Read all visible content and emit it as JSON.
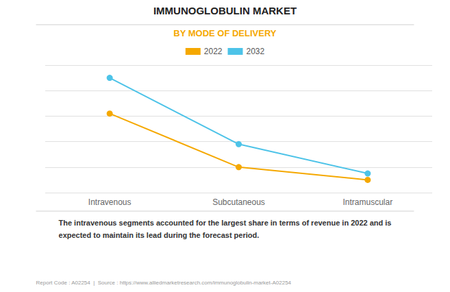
{
  "chart_data": {
    "type": "line",
    "title": "IMMUNOGLOBULIN MARKET",
    "subtitle": "BY MODE OF DELIVERY",
    "categories": [
      "Intravenous",
      "Subcutaneous",
      "Intramuscular"
    ],
    "series": [
      {
        "name": "2022",
        "color": "#F5A800",
        "marker": "o",
        "values": [
          62,
          20,
          10
        ]
      },
      {
        "name": "2032",
        "color": "#4DC3E8",
        "marker": "o",
        "values": [
          90,
          38,
          15
        ]
      }
    ],
    "ylim": [
      0,
      100
    ],
    "yticks": [
      0,
      20,
      40,
      60,
      80,
      100
    ],
    "grid": true,
    "tick_labels": "x",
    "legend": "upper center",
    "annotation": "The intravenous segments accounted for the largest share in terms of revenue in 2022 and is\nexpected to maintain its lead during the forecast period.",
    "footer": "Report Code : A02254  |  Source : https://www.alliedmarketresearch.com/immunoglobulin-market-A02254"
  }
}
